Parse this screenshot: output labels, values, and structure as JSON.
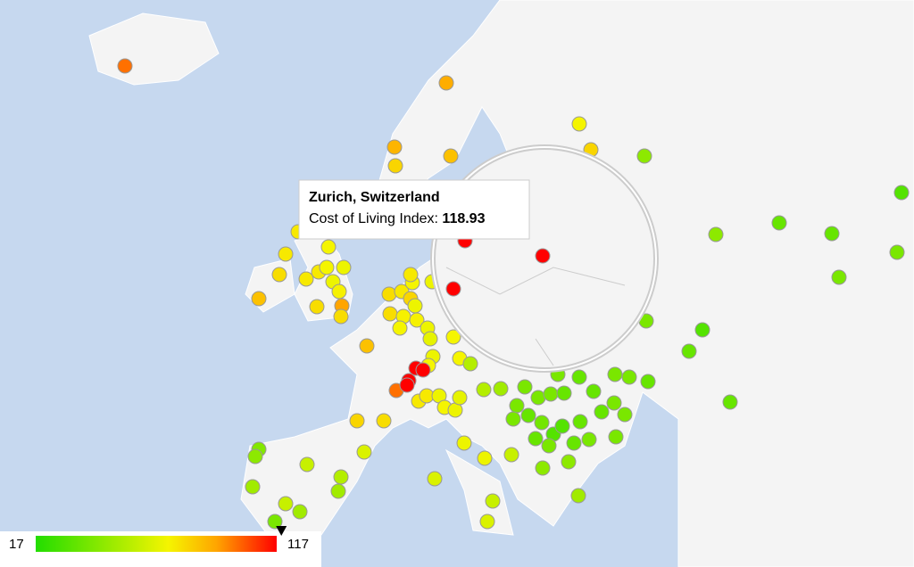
{
  "legend": {
    "min": 17,
    "max": 117
  },
  "tooltip": {
    "title": "Zurich, Switzerland",
    "label": "Cost of Living Index:",
    "value": 118.93
  },
  "markers": [
    100,
    90,
    88,
    85,
    80,
    72,
    80,
    45,
    30,
    35,
    35,
    45,
    40,
    40,
    40,
    30,
    35,
    35,
    35,
    72,
    75,
    78,
    85,
    75,
    72,
    70,
    70,
    73,
    92,
    78,
    78,
    75,
    75,
    78,
    75,
    72,
    80,
    78,
    73,
    70,
    75,
    70,
    73,
    72,
    70,
    68,
    70,
    72,
    72,
    72,
    85,
    80,
    78,
    100,
    118,
    118,
    118,
    118,
    75,
    75,
    70,
    72,
    70,
    68,
    70,
    70,
    60,
    65,
    60,
    65,
    55,
    55,
    50,
    40,
    40,
    40,
    40,
    40,
    35,
    35,
    40,
    40,
    40,
    35,
    38,
    30,
    30,
    35,
    35,
    35,
    40,
    40,
    35,
    40,
    40,
    40,
    45,
    50,
    45,
    35,
    40,
    42,
    45,
    60,
    50,
    65,
    55,
    50,
    60,
    50,
    40,
    118,
    118,
    118
  ]
}
